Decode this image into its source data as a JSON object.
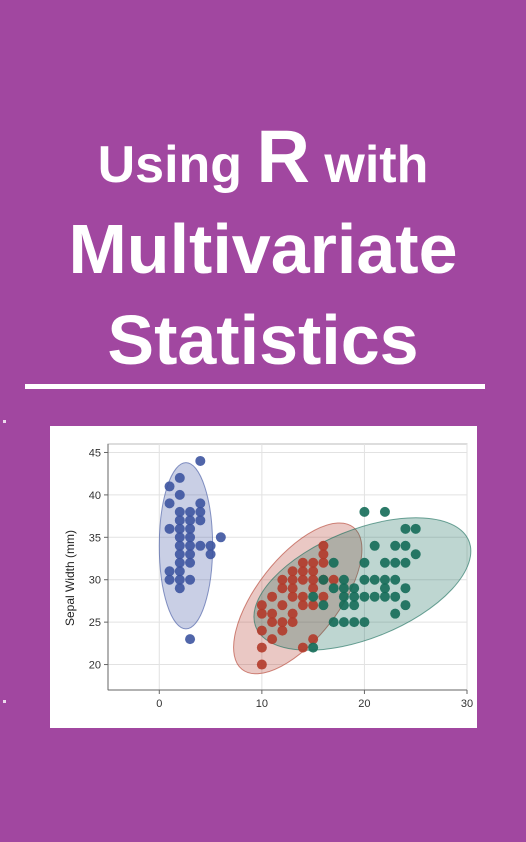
{
  "cover": {
    "title_line1_prefix": "Using",
    "title_line1_r": "R",
    "title_line1_suffix": "with",
    "title_line2": "Multivariate",
    "title_line3": "Statistics",
    "background_color": "#a147a0"
  },
  "chart_data": {
    "type": "scatter",
    "ylabel": "Sepal Width (mm)",
    "xlim": [
      -5,
      30
    ],
    "ylim": [
      17,
      46
    ],
    "x_ticks": [
      0,
      10,
      20,
      30
    ],
    "y_ticks": [
      20,
      25,
      30,
      35,
      40,
      45
    ],
    "grid": true,
    "series": [
      {
        "color": "#3d54a0",
        "points": [
          [
            1,
            41
          ],
          [
            2,
            42
          ],
          [
            4,
            44
          ],
          [
            1,
            39
          ],
          [
            2,
            40
          ],
          [
            2,
            38
          ],
          [
            3,
            38
          ],
          [
            4,
            39
          ],
          [
            4,
            38
          ],
          [
            2,
            37
          ],
          [
            3,
            37
          ],
          [
            1,
            36
          ],
          [
            2,
            36
          ],
          [
            3,
            36
          ],
          [
            4,
            37
          ],
          [
            2,
            35
          ],
          [
            3,
            35
          ],
          [
            2,
            34
          ],
          [
            3,
            34
          ],
          [
            4,
            34
          ],
          [
            5,
            34
          ],
          [
            2,
            33
          ],
          [
            3,
            33
          ],
          [
            5,
            33
          ],
          [
            6,
            35
          ],
          [
            2,
            32
          ],
          [
            3,
            32
          ],
          [
            2,
            31
          ],
          [
            1,
            31
          ],
          [
            2,
            30
          ],
          [
            3,
            30
          ],
          [
            1,
            30
          ],
          [
            2,
            29
          ],
          [
            3,
            23
          ]
        ],
        "ellipse": {
          "cx": 2.6,
          "cy": 34,
          "rx": 2.6,
          "ry": 9.8,
          "angle": 0
        }
      },
      {
        "color": "#b33a2a",
        "points": [
          [
            10,
            20
          ],
          [
            10,
            22
          ],
          [
            10,
            24
          ],
          [
            11,
            23
          ],
          [
            11,
            25
          ],
          [
            10,
            26
          ],
          [
            10,
            27
          ],
          [
            11,
            28
          ],
          [
            12,
            27
          ],
          [
            12,
            29
          ],
          [
            12,
            30
          ],
          [
            13,
            26
          ],
          [
            13,
            28
          ],
          [
            13,
            29
          ],
          [
            14,
            27
          ],
          [
            14,
            28
          ],
          [
            14,
            30
          ],
          [
            14,
            31
          ],
          [
            15,
            29
          ],
          [
            15,
            30
          ],
          [
            15,
            31
          ],
          [
            16,
            28
          ],
          [
            16,
            32
          ],
          [
            16,
            33
          ],
          [
            16,
            34
          ],
          [
            15,
            32
          ],
          [
            17,
            30
          ],
          [
            12,
            24
          ],
          [
            13,
            25
          ],
          [
            14,
            22
          ],
          [
            12,
            25
          ],
          [
            15,
            27
          ],
          [
            11,
            26
          ],
          [
            13,
            30
          ],
          [
            14,
            32
          ],
          [
            16,
            30
          ],
          [
            15,
            23
          ],
          [
            13,
            31
          ]
        ],
        "ellipse": {
          "cx": 13.5,
          "cy": 27.8,
          "rx": 8.8,
          "ry": 4.8,
          "angle": -52
        }
      },
      {
        "color": "#146b58",
        "points": [
          [
            15,
            22
          ],
          [
            15,
            28
          ],
          [
            16,
            27
          ],
          [
            17,
            29
          ],
          [
            17,
            25
          ],
          [
            18,
            30
          ],
          [
            18,
            29
          ],
          [
            18,
            28
          ],
          [
            18,
            27
          ],
          [
            18,
            25
          ],
          [
            19,
            29
          ],
          [
            19,
            28
          ],
          [
            19,
            27
          ],
          [
            19,
            25
          ],
          [
            20,
            38
          ],
          [
            20,
            32
          ],
          [
            20,
            30
          ],
          [
            20,
            28
          ],
          [
            20,
            25
          ],
          [
            21,
            28
          ],
          [
            21,
            30
          ],
          [
            21,
            34
          ],
          [
            22,
            38
          ],
          [
            22,
            30
          ],
          [
            22,
            28
          ],
          [
            22,
            32
          ],
          [
            23,
            34
          ],
          [
            23,
            32
          ],
          [
            23,
            30
          ],
          [
            23,
            28
          ],
          [
            24,
            36
          ],
          [
            24,
            34
          ],
          [
            24,
            32
          ],
          [
            24,
            29
          ],
          [
            24,
            27
          ],
          [
            25,
            36
          ],
          [
            25,
            33
          ],
          [
            23,
            26
          ],
          [
            16,
            30
          ],
          [
            17,
            32
          ],
          [
            22,
            29
          ]
        ],
        "ellipse": {
          "cx": 19.8,
          "cy": 29.5,
          "rx": 11.2,
          "ry": 6.4,
          "angle": -22
        }
      }
    ]
  }
}
